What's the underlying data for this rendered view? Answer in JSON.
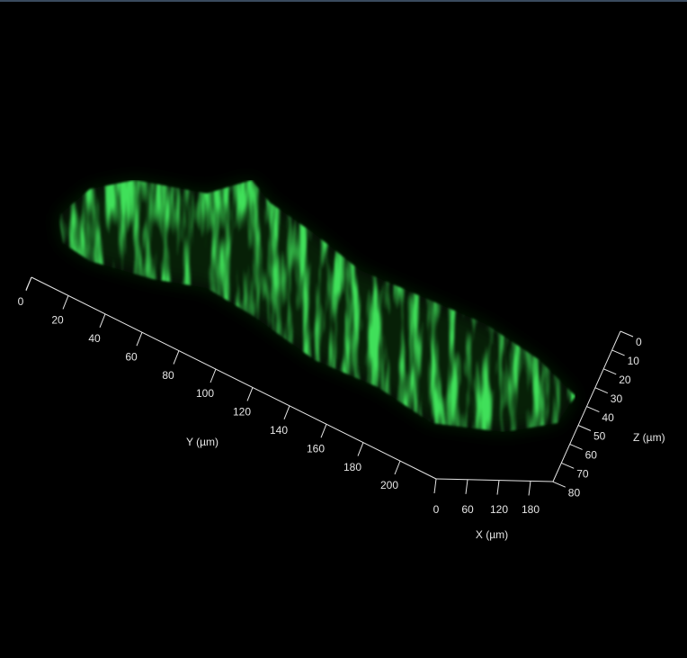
{
  "axes": {
    "y": {
      "label": "Y (µm)",
      "ticks": [
        0,
        20,
        40,
        60,
        80,
        100,
        120,
        140,
        160,
        180,
        200
      ]
    },
    "x": {
      "label": "X (µm)",
      "ticks": [
        0,
        60,
        120,
        180
      ]
    },
    "z": {
      "label": "Z (µm)",
      "ticks": [
        0,
        10,
        20,
        30,
        40,
        50,
        60,
        70,
        80
      ]
    }
  }
}
